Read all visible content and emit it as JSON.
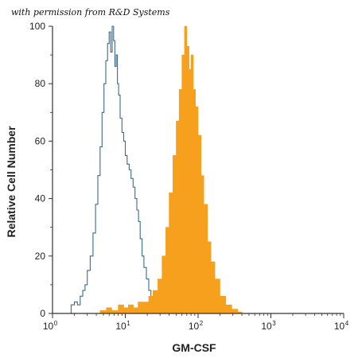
{
  "permission_note": "with permission from R&D Systems",
  "colors": {
    "isotype_outline": "#3e6c88",
    "stained_fill": "#f6a01d",
    "axis": "#333333"
  },
  "chart_data": {
    "type": "area",
    "xscale": "log",
    "xlim": [
      1,
      10000
    ],
    "ylim": [
      0,
      100
    ],
    "xlabel": "GM-CSF",
    "ylabel": "Relative Cell Number",
    "xticks": [
      {
        "value": 1,
        "base": "10",
        "exp": "0"
      },
      {
        "value": 10,
        "base": "10",
        "exp": "1"
      },
      {
        "value": 100,
        "base": "10",
        "exp": "2"
      },
      {
        "value": 1000,
        "base": "10",
        "exp": "3"
      },
      {
        "value": 10000,
        "base": "10",
        "exp": "4"
      }
    ],
    "yticks": [
      "0",
      "20",
      "40",
      "60",
      "80",
      "100"
    ],
    "legend": "none",
    "grid": false,
    "series": [
      {
        "style": "outline",
        "x": [
          1.65,
          1.8,
          2.0,
          2.2,
          2.4,
          2.6,
          2.8,
          3.0,
          3.3,
          3.6,
          3.9,
          4.2,
          4.5,
          4.8,
          5.1,
          5.4,
          5.7,
          6.0,
          6.3,
          6.6,
          6.9,
          7.2,
          7.5,
          7.8,
          8.1,
          8.5,
          9.0,
          9.5,
          10.0,
          10.6,
          11.3,
          12.0,
          12.8,
          13.6,
          14.4,
          15.2,
          16.0,
          17.0,
          18.0,
          19.5,
          21.0,
          22.5,
          24.0
        ],
        "y": [
          0,
          3,
          4,
          3,
          6,
          8,
          10,
          15,
          20,
          28,
          38,
          48,
          58,
          70,
          80,
          88,
          94,
          98,
          91,
          100,
          95,
          86,
          90,
          80,
          76,
          68,
          63,
          60,
          55,
          52,
          50,
          47,
          44,
          40,
          36,
          32,
          26,
          20,
          16,
          12,
          8,
          3,
          0
        ]
      },
      {
        "style": "filled",
        "x": [
          3.8,
          4.5,
          5.5,
          6.5,
          8.0,
          9.5,
          11.0,
          13.0,
          15.0,
          18.0,
          21.0,
          24.0,
          28.0,
          32.0,
          36.0,
          40.0,
          45.0,
          50.0,
          55.0,
          60.0,
          65.0,
          70.0,
          75.0,
          80.0,
          86.0,
          92.0,
          100.0,
          110.0,
          120.0,
          135.0,
          150.0,
          170.0,
          200.0,
          240.0,
          290.0,
          350.0,
          400.0
        ],
        "y": [
          0,
          1,
          2,
          1,
          3,
          2,
          3,
          2,
          4,
          4,
          6,
          8,
          12,
          20,
          30,
          42,
          55,
          67,
          78,
          90,
          100,
          93,
          85,
          90,
          78,
          72,
          62,
          48,
          38,
          25,
          18,
          12,
          6,
          3,
          1.5,
          0.5,
          0
        ]
      }
    ]
  }
}
